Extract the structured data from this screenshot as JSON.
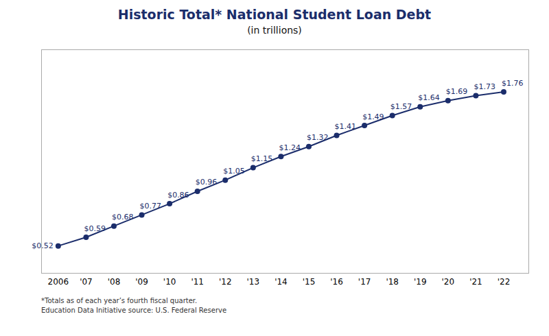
{
  "chart_data": {
    "type": "line",
    "title": "Historic Total* National Student Loan Debt",
    "subtitle": "(in trillions)",
    "x": [
      2006,
      2007,
      2008,
      2009,
      2010,
      2011,
      2012,
      2013,
      2014,
      2015,
      2016,
      2017,
      2018,
      2019,
      2020,
      2021,
      2022
    ],
    "values": [
      0.52,
      0.59,
      0.68,
      0.77,
      0.86,
      0.96,
      1.05,
      1.15,
      1.24,
      1.32,
      1.41,
      1.49,
      1.57,
      1.64,
      1.69,
      1.73,
      1.76
    ],
    "value_labels": [
      "$0.52",
      "$0.59",
      "$0.68",
      "$0.77",
      "$0.86",
      "$0.96",
      "$1.05",
      "$1.15",
      "$1.24",
      "$1.32",
      "$1.41",
      "$1.49",
      "$1.57",
      "$1.64",
      "$1.69",
      "$1.73",
      "$1.76"
    ],
    "color": "#1b2d6b",
    "marker": "circle",
    "data_labels": true,
    "xlim": [
      2005.4,
      2022.9
    ],
    "xticks": [
      2006,
      {
        "value": 2007,
        "label": "'07"
      },
      {
        "value": 2008,
        "label": "'08"
      },
      {
        "value": 2009,
        "label": "'09"
      },
      {
        "value": 2010,
        "label": "'10"
      },
      {
        "value": 2011,
        "label": "'11"
      },
      {
        "value": 2012,
        "label": "'12"
      },
      {
        "value": 2013,
        "label": "'13"
      },
      {
        "value": 2014,
        "label": "'14"
      },
      {
        "value": 2015,
        "label": "'15"
      },
      {
        "value": 2016,
        "label": "'16"
      },
      {
        "value": 2017,
        "label": "'17"
      },
      {
        "value": 2018,
        "label": "'18"
      },
      {
        "value": 2019,
        "label": "'19"
      },
      {
        "value": 2020,
        "label": "'20"
      },
      {
        "value": 2021,
        "label": "'21"
      },
      {
        "value": 2022,
        "label": "'22"
      }
    ],
    "ylim": [
      0.3,
      2.1
    ],
    "tick_labels": "x",
    "grid": false,
    "footnotes": [
      "*Totals as of each year’s fourth fiscal quarter.",
      "Education Data Initiative source: U.S. Federal Reserve"
    ]
  }
}
